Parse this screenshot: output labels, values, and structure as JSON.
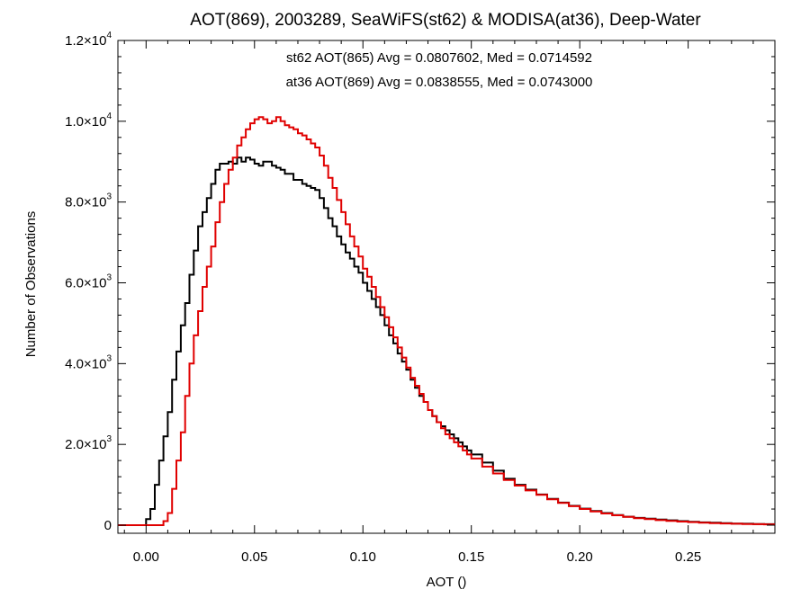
{
  "chart_data": {
    "type": "line",
    "title": "AOT(869), 2003289, SeaWiFS(st62) & MODISA(at36), Deep-Water",
    "xlabel": "AOT ()",
    "ylabel": "Number of Observations",
    "xlim": [
      -0.013,
      0.29
    ],
    "ylim": [
      -200,
      12000
    ],
    "x_ticks": [
      {
        "value": 0.0,
        "label": "0.00"
      },
      {
        "value": 0.05,
        "label": "0.05"
      },
      {
        "value": 0.1,
        "label": "0.10"
      },
      {
        "value": 0.15,
        "label": "0.15"
      },
      {
        "value": 0.2,
        "label": "0.20"
      },
      {
        "value": 0.25,
        "label": "0.25"
      }
    ],
    "y_ticks": [
      {
        "value": 0,
        "mantissa": "0",
        "exponent": ""
      },
      {
        "value": 2000,
        "mantissa": "2.0×10",
        "exponent": "3"
      },
      {
        "value": 4000,
        "mantissa": "4.0×10",
        "exponent": "3"
      },
      {
        "value": 6000,
        "mantissa": "6.0×10",
        "exponent": "3"
      },
      {
        "value": 8000,
        "mantissa": "8.0×10",
        "exponent": "3"
      },
      {
        "value": 10000,
        "mantissa": "1.0×10",
        "exponent": "4"
      },
      {
        "value": 12000,
        "mantissa": "1.2×10",
        "exponent": "4"
      }
    ],
    "grid": false,
    "step_histogram": true,
    "annotations": [
      {
        "text": "st62 AOT(865) Avg = 0.0807602, Med = 0.0714592",
        "color": "#000000"
      },
      {
        "text": "at36 AOT(869) Avg = 0.0838555, Med = 0.0743000",
        "color": "#e00000"
      }
    ],
    "series": [
      {
        "id": "st62",
        "color": "#000000",
        "x": [
          -0.013,
          -0.004,
          0.0,
          0.002,
          0.004,
          0.006,
          0.008,
          0.01,
          0.012,
          0.014,
          0.016,
          0.018,
          0.02,
          0.022,
          0.024,
          0.026,
          0.028,
          0.03,
          0.032,
          0.034,
          0.036,
          0.038,
          0.04,
          0.042,
          0.044,
          0.046,
          0.048,
          0.05,
          0.052,
          0.054,
          0.056,
          0.058,
          0.06,
          0.062,
          0.064,
          0.066,
          0.068,
          0.07,
          0.072,
          0.074,
          0.076,
          0.078,
          0.08,
          0.082,
          0.084,
          0.086,
          0.088,
          0.09,
          0.092,
          0.094,
          0.096,
          0.098,
          0.1,
          0.102,
          0.104,
          0.106,
          0.108,
          0.11,
          0.112,
          0.114,
          0.116,
          0.118,
          0.12,
          0.122,
          0.124,
          0.126,
          0.128,
          0.13,
          0.132,
          0.134,
          0.136,
          0.138,
          0.14,
          0.142,
          0.144,
          0.146,
          0.148,
          0.15,
          0.155,
          0.16,
          0.165,
          0.17,
          0.175,
          0.18,
          0.185,
          0.19,
          0.195,
          0.2,
          0.205,
          0.21,
          0.215,
          0.22,
          0.225,
          0.23,
          0.235,
          0.24,
          0.245,
          0.25,
          0.255,
          0.26,
          0.265,
          0.27,
          0.275,
          0.28,
          0.285,
          0.29
        ],
        "y": [
          0,
          0,
          150,
          400,
          1000,
          1600,
          2200,
          2800,
          3600,
          4300,
          4950,
          5500,
          6200,
          6800,
          7400,
          7750,
          8100,
          8450,
          8800,
          8950,
          8950,
          9000,
          8950,
          9100,
          9000,
          9100,
          9050,
          8950,
          8900,
          9000,
          9000,
          8900,
          8850,
          8800,
          8700,
          8700,
          8550,
          8550,
          8450,
          8400,
          8350,
          8300,
          8100,
          7850,
          7600,
          7400,
          7150,
          6950,
          6750,
          6600,
          6400,
          6250,
          6000,
          5800,
          5600,
          5400,
          5200,
          4950,
          4700,
          4500,
          4250,
          4050,
          3850,
          3600,
          3400,
          3200,
          3050,
          2850,
          2700,
          2550,
          2450,
          2350,
          2250,
          2150,
          2050,
          1950,
          1850,
          1750,
          1550,
          1350,
          1150,
          1000,
          880,
          760,
          650,
          560,
          480,
          410,
          350,
          300,
          250,
          210,
          180,
          160,
          140,
          120,
          100,
          85,
          70,
          60,
          50,
          40,
          35,
          30,
          25,
          25
        ]
      },
      {
        "id": "at36",
        "color": "#e00000",
        "x": [
          -0.013,
          -0.004,
          0.0,
          0.002,
          0.004,
          0.006,
          0.008,
          0.01,
          0.012,
          0.014,
          0.016,
          0.018,
          0.02,
          0.022,
          0.024,
          0.026,
          0.028,
          0.03,
          0.032,
          0.034,
          0.036,
          0.038,
          0.04,
          0.042,
          0.044,
          0.046,
          0.048,
          0.05,
          0.052,
          0.054,
          0.056,
          0.058,
          0.06,
          0.062,
          0.064,
          0.066,
          0.068,
          0.07,
          0.072,
          0.074,
          0.076,
          0.078,
          0.08,
          0.082,
          0.084,
          0.086,
          0.088,
          0.09,
          0.092,
          0.094,
          0.096,
          0.098,
          0.1,
          0.102,
          0.104,
          0.106,
          0.108,
          0.11,
          0.112,
          0.114,
          0.116,
          0.118,
          0.12,
          0.122,
          0.124,
          0.126,
          0.128,
          0.13,
          0.132,
          0.134,
          0.136,
          0.138,
          0.14,
          0.142,
          0.144,
          0.146,
          0.148,
          0.15,
          0.155,
          0.16,
          0.165,
          0.17,
          0.175,
          0.18,
          0.185,
          0.19,
          0.195,
          0.2,
          0.205,
          0.21,
          0.215,
          0.22,
          0.225,
          0.23,
          0.235,
          0.24,
          0.245,
          0.25,
          0.255,
          0.26,
          0.265,
          0.27,
          0.275,
          0.28,
          0.285,
          0.29
        ],
        "y": [
          0,
          0,
          0,
          0,
          0,
          0,
          100,
          300,
          900,
          1600,
          2300,
          3200,
          4000,
          4700,
          5300,
          5900,
          6400,
          6900,
          7500,
          8000,
          8450,
          8800,
          9100,
          9400,
          9600,
          9800,
          9950,
          10050,
          10100,
          10050,
          9950,
          10000,
          10100,
          10000,
          9900,
          9850,
          9800,
          9700,
          9650,
          9550,
          9450,
          9350,
          9150,
          8900,
          8600,
          8350,
          8050,
          7750,
          7450,
          7150,
          6900,
          6650,
          6350,
          6150,
          5900,
          5650,
          5400,
          5150,
          4900,
          4650,
          4400,
          4150,
          3900,
          3650,
          3450,
          3250,
          3050,
          2850,
          2700,
          2550,
          2400,
          2250,
          2150,
          2050,
          1950,
          1850,
          1750,
          1650,
          1450,
          1280,
          1120,
          980,
          860,
          750,
          640,
          550,
          470,
          400,
          340,
          290,
          245,
          205,
          175,
          150,
          125,
          105,
          90,
          75,
          62,
          50,
          42,
          35,
          30,
          25,
          20,
          20
        ]
      }
    ]
  }
}
